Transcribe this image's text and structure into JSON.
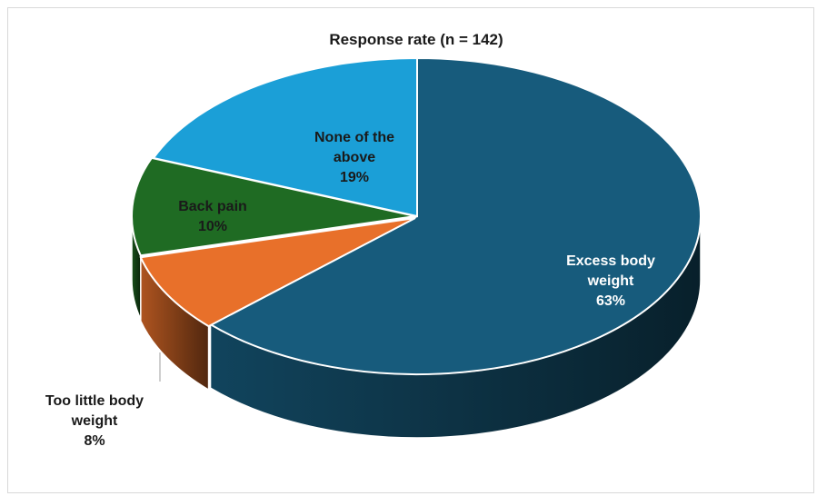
{
  "chart_data": {
    "type": "pie",
    "title": "Response rate (n = 142)",
    "style": "3d-exploded-pie",
    "categories": [
      "Excess body weight",
      "Too little body weight",
      "Back pain",
      "None of the above"
    ],
    "values": [
      63,
      8,
      10,
      19
    ],
    "unit": "%",
    "colors": [
      "#175b7c",
      "#e8702a",
      "#1f6b23",
      "#1b9fd7"
    ],
    "labels": [
      {
        "lines": [
          "Excess body",
          "weight",
          "63%"
        ]
      },
      {
        "lines": [
          "Too little body",
          "weight",
          "8%"
        ]
      },
      {
        "lines": [
          "Back pain",
          "10%"
        ]
      },
      {
        "lines": [
          "None of the",
          "above",
          "19%"
        ]
      }
    ],
    "legend": "none"
  }
}
